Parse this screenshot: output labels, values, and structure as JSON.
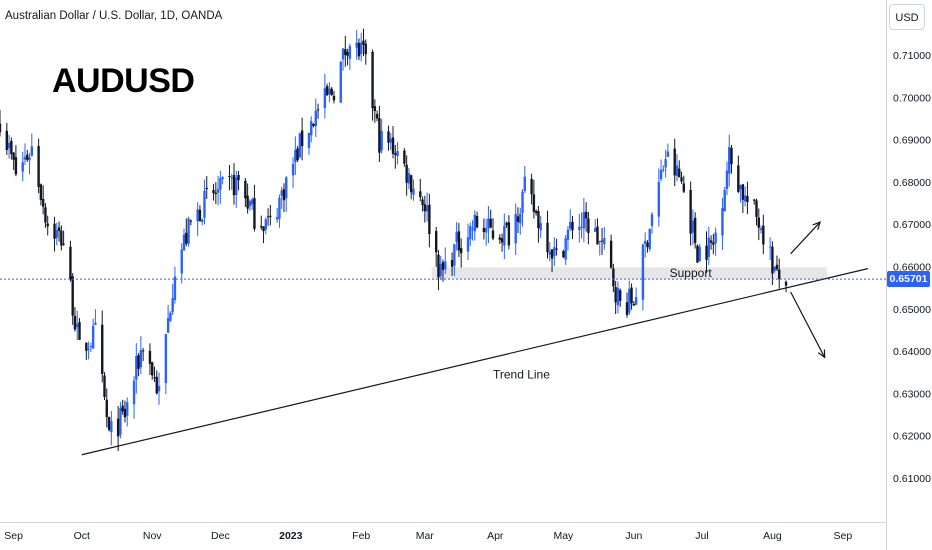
{
  "header": {
    "symbol_line": "Australian Dollar / U.S. Dollar, 1D, OANDA",
    "currency": "USD"
  },
  "overlay_title": "AUDUSD",
  "colors": {
    "up": "#2962ff",
    "down": "#131722",
    "current_price": "#2962ff",
    "grid": "#ffffff",
    "support_zone": "#e6e6e6",
    "trendline": "#131722"
  },
  "chart_data": {
    "type": "candlestick",
    "title": "AUDUSD",
    "x_range": [
      "2022-08-26",
      "2023-09-20"
    ],
    "ylim": [
      0.6,
      0.7175
    ],
    "y_ticks": [
      "0.71000",
      "0.70000",
      "0.69000",
      "0.68000",
      "0.67000",
      "0.66000",
      "0.65000",
      "0.64000",
      "0.63000",
      "0.62000",
      "0.61000"
    ],
    "x_ticks": [
      {
        "label": "Sep",
        "date": "2022-09-01"
      },
      {
        "label": "Oct",
        "date": "2022-10-01"
      },
      {
        "label": "Nov",
        "date": "2022-11-01"
      },
      {
        "label": "Dec",
        "date": "2022-12-01"
      },
      {
        "label": "2023",
        "date": "2023-01-01"
      },
      {
        "label": "Feb",
        "date": "2023-02-01"
      },
      {
        "label": "Mar",
        "date": "2023-03-01"
      },
      {
        "label": "Apr",
        "date": "2023-04-01"
      },
      {
        "label": "May",
        "date": "2023-05-01"
      },
      {
        "label": "Jun",
        "date": "2023-06-01"
      },
      {
        "label": "Jul",
        "date": "2023-07-01"
      },
      {
        "label": "Aug",
        "date": "2023-08-01"
      },
      {
        "label": "Sep",
        "date": "2023-09-01"
      }
    ],
    "current_price": "0.65701",
    "close_path": [
      [
        "2022-08-26",
        0.695
      ],
      [
        "2022-09-02",
        0.682
      ],
      [
        "2022-09-09",
        0.688
      ],
      [
        "2022-09-16",
        0.67
      ],
      [
        "2022-09-23",
        0.666
      ],
      [
        "2022-09-30",
        0.64
      ],
      [
        "2022-10-07",
        0.644
      ],
      [
        "2022-10-13",
        0.62
      ],
      [
        "2022-10-20",
        0.625
      ],
      [
        "2022-10-28",
        0.642
      ],
      [
        "2022-11-04",
        0.63
      ],
      [
        "2022-11-11",
        0.66
      ],
      [
        "2022-11-18",
        0.67
      ],
      [
        "2022-11-25",
        0.676
      ],
      [
        "2022-12-02",
        0.678
      ],
      [
        "2022-12-09",
        0.68
      ],
      [
        "2022-12-16",
        0.672
      ],
      [
        "2022-12-23",
        0.67
      ],
      [
        "2022-12-30",
        0.68
      ],
      [
        "2023-01-06",
        0.69
      ],
      [
        "2023-01-13",
        0.697
      ],
      [
        "2023-01-20",
        0.702
      ],
      [
        "2023-01-26",
        0.713
      ],
      [
        "2023-02-02",
        0.71
      ],
      [
        "2023-02-09",
        0.69
      ],
      [
        "2023-02-16",
        0.688
      ],
      [
        "2023-02-23",
        0.68
      ],
      [
        "2023-03-01",
        0.675
      ],
      [
        "2023-03-08",
        0.658
      ],
      [
        "2023-03-15",
        0.665
      ],
      [
        "2023-03-23",
        0.67
      ],
      [
        "2023-03-31",
        0.668
      ],
      [
        "2023-04-07",
        0.668
      ],
      [
        "2023-04-14",
        0.678
      ],
      [
        "2023-04-21",
        0.67
      ],
      [
        "2023-04-28",
        0.662
      ],
      [
        "2023-05-05",
        0.67
      ],
      [
        "2023-05-12",
        0.67
      ],
      [
        "2023-05-19",
        0.664
      ],
      [
        "2023-05-26",
        0.651
      ],
      [
        "2023-06-01",
        0.652
      ],
      [
        "2023-06-08",
        0.67
      ],
      [
        "2023-06-15",
        0.686
      ],
      [
        "2023-06-22",
        0.68
      ],
      [
        "2023-06-29",
        0.664
      ],
      [
        "2023-07-06",
        0.665
      ],
      [
        "2023-07-13",
        0.686
      ],
      [
        "2023-07-20",
        0.676
      ],
      [
        "2023-07-27",
        0.67
      ],
      [
        "2023-08-03",
        0.657
      ],
      [
        "2023-08-07",
        0.657
      ]
    ],
    "annotations": [
      {
        "type": "trend_line",
        "label": "Trend Line",
        "from": [
          "2022-10-01",
          0.6155
        ],
        "to": [
          "2023-09-12",
          0.6595
        ]
      },
      {
        "type": "zone",
        "label": "Support",
        "from": "2023-03-04",
        "to": "2023-08-25",
        "y_range": [
          0.657,
          0.6598
        ]
      },
      {
        "type": "arrow",
        "label": "",
        "from": [
          "2023-08-09",
          0.663
        ],
        "to": [
          "2023-08-22",
          0.6705
        ]
      },
      {
        "type": "arrow",
        "label": "",
        "from": [
          "2023-08-09",
          0.654
        ],
        "to": [
          "2023-08-24",
          0.6385
        ]
      }
    ]
  }
}
